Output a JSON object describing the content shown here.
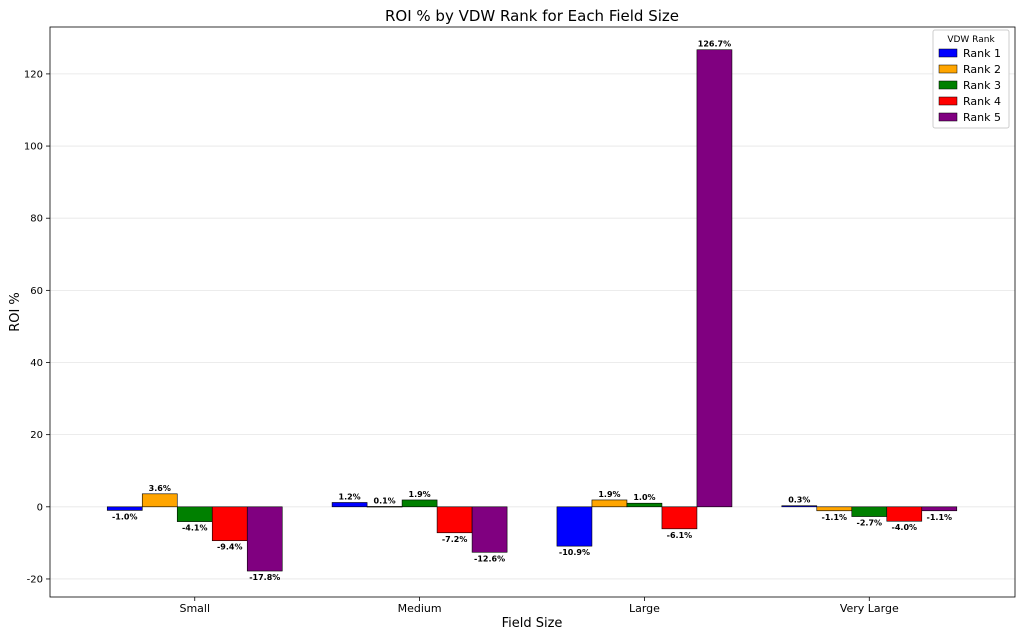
{
  "chart_data": {
    "type": "bar",
    "title": "ROI % by VDW Rank for Each Field Size",
    "xlabel": "Field Size",
    "ylabel": "ROI %",
    "categories": [
      "Small",
      "Medium",
      "Large",
      "Very Large"
    ],
    "ylim": [
      -25,
      133
    ],
    "yticks": [
      -20,
      0,
      20,
      40,
      60,
      80,
      100,
      120
    ],
    "grid": true,
    "legend_title": "VDW Rank",
    "legend_position": "top-right",
    "series": [
      {
        "name": "Rank 1",
        "color": "#0000ff",
        "values": [
          -1.0,
          1.2,
          -10.9,
          0.3
        ],
        "labels": [
          "-1.0%",
          "1.2%",
          "-10.9%",
          "0.3%"
        ]
      },
      {
        "name": "Rank 2",
        "color": "#ffa500",
        "values": [
          3.6,
          0.1,
          1.9,
          -1.1
        ],
        "labels": [
          "3.6%",
          "0.1%",
          "1.9%",
          "-1.1%"
        ]
      },
      {
        "name": "Rank 3",
        "color": "#008000",
        "values": [
          -4.1,
          1.9,
          1.0,
          -2.7
        ],
        "labels": [
          "-4.1%",
          "1.9%",
          "1.0%",
          "-2.7%"
        ]
      },
      {
        "name": "Rank 4",
        "color": "#ff0000",
        "values": [
          -9.4,
          -7.2,
          -6.1,
          -4.0
        ],
        "labels": [
          "-9.4%",
          "-7.2%",
          "-6.1%",
          "-4.0%"
        ]
      },
      {
        "name": "Rank 5",
        "color": "#800080",
        "values": [
          -17.8,
          -12.6,
          126.7,
          -1.1
        ],
        "labels": [
          "-17.8%",
          "-12.6%",
          "126.7%",
          "-1.1%"
        ]
      }
    ]
  }
}
